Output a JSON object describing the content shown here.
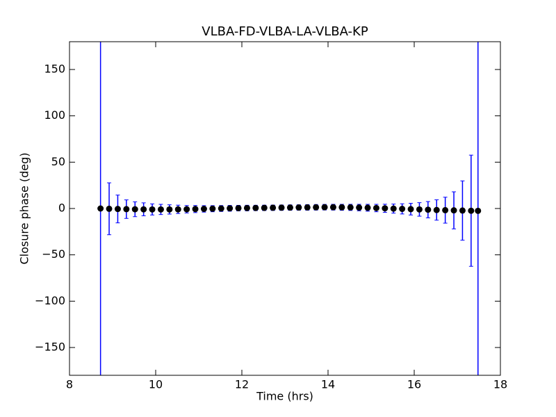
{
  "chart_data": {
    "type": "errorbar",
    "title": "VLBA-FD-VLBA-LA-VLBA-KP",
    "xlabel": "Time (hrs)",
    "ylabel": "Closure phase (deg)",
    "x": [
      8.72,
      8.92,
      9.12,
      9.32,
      9.52,
      9.72,
      9.92,
      10.12,
      10.32,
      10.52,
      10.72,
      10.92,
      11.12,
      11.32,
      11.52,
      11.72,
      11.92,
      12.12,
      12.32,
      12.52,
      12.72,
      12.92,
      13.12,
      13.32,
      13.52,
      13.72,
      13.92,
      14.12,
      14.32,
      14.52,
      14.72,
      14.92,
      15.12,
      15.32,
      15.52,
      15.72,
      15.92,
      16.12,
      16.32,
      16.52,
      16.72,
      16.92,
      17.12,
      17.32,
      17.48
    ],
    "values": [
      0.0,
      -0.3,
      -0.5,
      -0.7,
      -0.8,
      -0.9,
      -1.0,
      -1.0,
      -1.0,
      -0.9,
      -0.8,
      -0.6,
      -0.4,
      -0.2,
      0.0,
      0.2,
      0.4,
      0.5,
      0.6,
      0.7,
      0.8,
      0.9,
      1.0,
      1.1,
      1.2,
      1.3,
      1.4,
      1.4,
      1.3,
      1.2,
      1.0,
      0.8,
      0.5,
      0.2,
      -0.1,
      -0.4,
      -0.7,
      -1.0,
      -1.3,
      -1.6,
      -1.8,
      -2.0,
      -2.2,
      -2.4,
      -2.5
    ],
    "errors": [
      190,
      28,
      15,
      10,
      8,
      7,
      6,
      5.5,
      5,
      4.5,
      4,
      3.8,
      3.5,
      3.3,
      3.2,
      3.1,
      3.0,
      3.0,
      2.9,
      2.9,
      2.9,
      2.9,
      2.9,
      2.9,
      3.0,
      3.0,
      3.0,
      3.1,
      3.2,
      3.3,
      3.5,
      3.7,
      4.0,
      4.4,
      4.9,
      5.5,
      6.3,
      7.3,
      8.8,
      11,
      14,
      20,
      32,
      60,
      200
    ],
    "color": "#0000ff",
    "marker_color": "#000000",
    "xlim": [
      8,
      18
    ],
    "xticks": [
      8,
      10,
      12,
      14,
      16,
      18
    ],
    "ylim": [
      -180,
      180
    ],
    "yticks": [
      {
        "value": -150,
        "label": "−150"
      },
      {
        "value": -100,
        "label": "−100"
      },
      {
        "value": -50,
        "label": "−50"
      },
      0,
      50,
      100,
      150
    ]
  }
}
